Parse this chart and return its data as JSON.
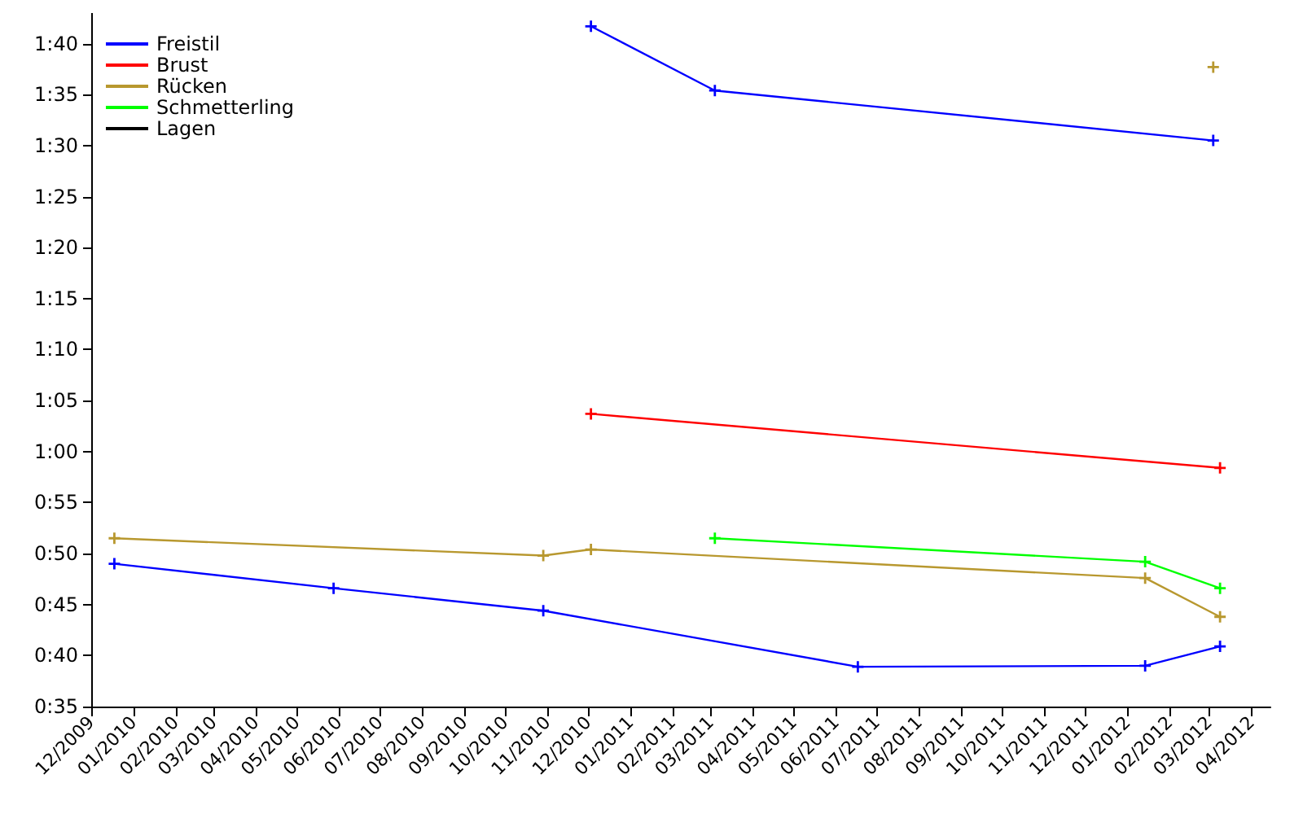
{
  "chart_data": {
    "type": "line",
    "marker": "cross",
    "legend": "top left",
    "grid": false,
    "xlim": [
      "2009-12-01",
      "2012-04-15"
    ],
    "xticks": [
      {
        "value": "2009-12",
        "label": "12/2009"
      },
      {
        "value": "2010-01",
        "label": "01/2010"
      },
      {
        "value": "2010-02",
        "label": "02/2010"
      },
      {
        "value": "2010-03",
        "label": "03/2010"
      },
      {
        "value": "2010-04",
        "label": "04/2010"
      },
      {
        "value": "2010-05",
        "label": "05/2010"
      },
      {
        "value": "2010-06",
        "label": "06/2010"
      },
      {
        "value": "2010-07",
        "label": "07/2010"
      },
      {
        "value": "2010-08",
        "label": "08/2010"
      },
      {
        "value": "2010-09",
        "label": "09/2010"
      },
      {
        "value": "2010-10",
        "label": "10/2010"
      },
      {
        "value": "2010-11",
        "label": "11/2010"
      },
      {
        "value": "2010-12",
        "label": "12/2010"
      },
      {
        "value": "2011-01",
        "label": "01/2011"
      },
      {
        "value": "2011-02",
        "label": "02/2011"
      },
      {
        "value": "2011-03",
        "label": "03/2011"
      },
      {
        "value": "2011-04",
        "label": "04/2011"
      },
      {
        "value": "2011-05",
        "label": "05/2011"
      },
      {
        "value": "2011-06",
        "label": "06/2011"
      },
      {
        "value": "2011-07",
        "label": "07/2011"
      },
      {
        "value": "2011-08",
        "label": "08/2011"
      },
      {
        "value": "2011-09",
        "label": "09/2011"
      },
      {
        "value": "2011-10",
        "label": "10/2011"
      },
      {
        "value": "2011-11",
        "label": "11/2011"
      },
      {
        "value": "2011-12",
        "label": "12/2011"
      },
      {
        "value": "2012-01",
        "label": "01/2012"
      },
      {
        "value": "2012-02",
        "label": "02/2012"
      },
      {
        "value": "2012-03",
        "label": "03/2012"
      },
      {
        "value": "2012-04",
        "label": "04/2012"
      }
    ],
    "ylim": [
      35,
      103
    ],
    "yticks": [
      {
        "value": 35,
        "label": "0:35"
      },
      {
        "value": 40,
        "label": "0:40"
      },
      {
        "value": 45,
        "label": "0:45"
      },
      {
        "value": 50,
        "label": "0:50"
      },
      {
        "value": 55,
        "label": "0:55"
      },
      {
        "value": 60,
        "label": "1:00"
      },
      {
        "value": 65,
        "label": "1:05"
      },
      {
        "value": 70,
        "label": "1:10"
      },
      {
        "value": 75,
        "label": "1:15"
      },
      {
        "value": 80,
        "label": "1:20"
      },
      {
        "value": 85,
        "label": "1:25"
      },
      {
        "value": 90,
        "label": "1:30"
      },
      {
        "value": 95,
        "label": "1:35"
      },
      {
        "value": 100,
        "label": "1:40"
      }
    ],
    "series": [
      {
        "name": "Freistil",
        "color": "#0000ff",
        "x": [
          "2009-12-18",
          "2010-05-28",
          "2010-10-29",
          "2011-06-17",
          "2012-01-14",
          "2012-03-09"
        ],
        "values": [
          49.0,
          46.6,
          44.4,
          38.9,
          39.0,
          40.9
        ]
      },
      {
        "name": "Brust",
        "color": "#ff0000",
        "x": [
          "2010-12-03",
          "2012-03-09"
        ],
        "values": [
          63.7,
          58.4
        ]
      },
      {
        "name": "Rücken",
        "color": "#b8982f",
        "x": [
          "2009-12-18",
          "2010-10-29",
          "2010-12-03",
          "2012-01-14",
          "2012-03-09"
        ],
        "values": [
          51.5,
          49.8,
          50.4,
          47.6,
          43.8
        ]
      },
      {
        "name": "Schmetterling",
        "color": "#00ff00",
        "x": [
          "2011-03-04",
          "2012-01-14",
          "2012-03-09"
        ],
        "values": [
          51.5,
          49.2,
          46.6
        ]
      },
      {
        "name": "Lagen",
        "color": "#000000"
      },
      {
        "color": "#0000ff",
        "x": [
          "2010-12-03",
          "2011-03-04",
          "2012-03-04"
        ],
        "values": [
          101.7,
          95.4,
          90.5
        ]
      },
      {
        "color": "#b8982f",
        "x": [
          "2012-03-04"
        ],
        "values": [
          97.7
        ]
      }
    ]
  }
}
